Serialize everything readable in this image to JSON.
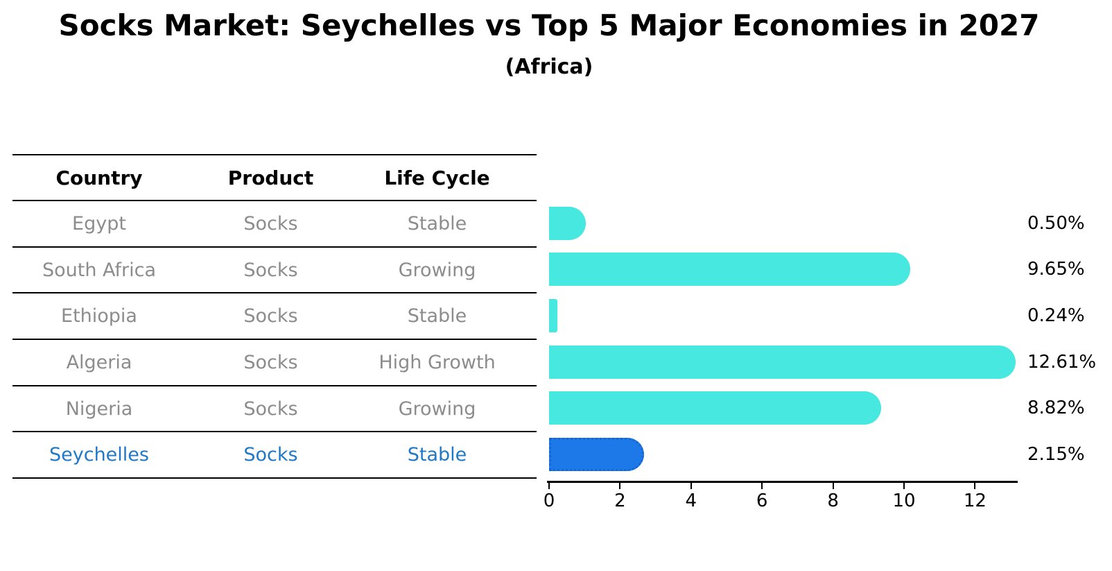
{
  "title": "Socks Market: Seychelles vs Top 5 Major Economies in 2027",
  "subtitle": "(Africa)",
  "table": {
    "headers": [
      "Country",
      "Product",
      "Life Cycle"
    ],
    "rows": [
      {
        "country": "Egypt",
        "product": "Socks",
        "life_cycle": "Stable",
        "highlight": false
      },
      {
        "country": "South Africa",
        "product": "Socks",
        "life_cycle": "Growing",
        "highlight": false
      },
      {
        "country": "Ethiopia",
        "product": "Socks",
        "life_cycle": "Stable",
        "highlight": false
      },
      {
        "country": "Algeria",
        "product": "Socks",
        "life_cycle": "High Growth",
        "highlight": false
      },
      {
        "country": "Nigeria",
        "product": "Socks",
        "life_cycle": "Growing",
        "highlight": false
      },
      {
        "country": "Seychelles",
        "product": "Socks",
        "life_cycle": "Stable",
        "highlight": true
      }
    ]
  },
  "chart_data": {
    "type": "bar",
    "orientation": "horizontal",
    "title": "Socks Market: Seychelles vs Top 5 Major Economies in 2027",
    "subtitle": "(Africa)",
    "categories": [
      "Egypt",
      "South Africa",
      "Ethiopia",
      "Algeria",
      "Nigeria",
      "Seychelles"
    ],
    "values": [
      0.5,
      9.65,
      0.24,
      12.61,
      8.82,
      2.15
    ],
    "value_labels": [
      "0.50%",
      "9.65%",
      "0.24%",
      "12.61%",
      "8.82%",
      "2.15%"
    ],
    "highlight_index": 5,
    "x_ticks": [
      0,
      2,
      4,
      6,
      8,
      10,
      12
    ],
    "xlim": [
      0,
      13.2
    ],
    "grid": false,
    "legend": null,
    "colors": {
      "default_bar": "#46E8E0",
      "highlight_bar": "#1E79E8",
      "highlight_edge": "#1566D6",
      "highlight_text": "#1F78C8",
      "row_text": "#8C8C8C",
      "axis": "#000000"
    }
  }
}
